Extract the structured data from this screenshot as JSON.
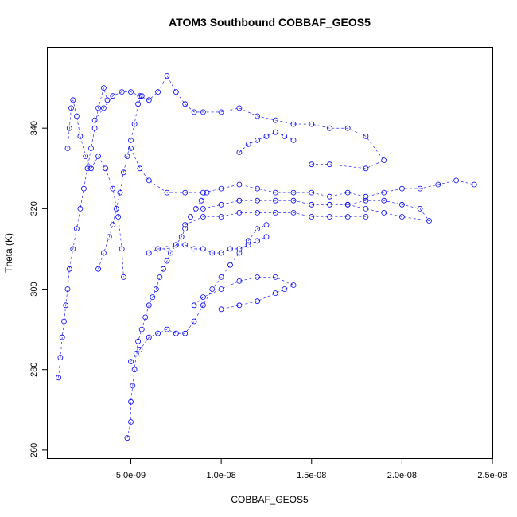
{
  "chart_data": {
    "type": "scatter",
    "title": "ATOM3 Southbound COBBAF_GEOS5",
    "xlabel": "COBBAF_GEOS5",
    "ylabel": "Theta (K)",
    "xlim": [
      4e-10,
      2.5e-08
    ],
    "ylim": [
      258,
      360
    ],
    "x_ticks": [
      5e-09,
      1e-08,
      1.5e-08,
      2e-08,
      2.5e-08
    ],
    "x_tick_labels": [
      "5.0e-09",
      "1.0e-08",
      "1.5e-08",
      "2.0e-08",
      "2.5e-08"
    ],
    "y_ticks": [
      260,
      280,
      300,
      320,
      340
    ],
    "y_tick_labels": [
      "260",
      "280",
      "300",
      "320",
      "340"
    ],
    "marker": "open-circle",
    "color": "#0000ff",
    "grid": false,
    "legend": "none",
    "series": [
      {
        "points": [
          [
            1e-09,
            278
          ],
          [
            1.1e-09,
            283
          ],
          [
            1.2e-09,
            288
          ],
          [
            1.3e-09,
            292
          ],
          [
            1.4e-09,
            296
          ],
          [
            1.5e-09,
            300
          ],
          [
            1.6e-09,
            305
          ],
          [
            1.8e-09,
            310
          ],
          [
            2e-09,
            315
          ],
          [
            2.2e-09,
            320
          ],
          [
            2.4e-09,
            325
          ],
          [
            2.6e-09,
            330
          ],
          [
            2.8e-09,
            335
          ],
          [
            3e-09,
            340
          ],
          [
            3.2e-09,
            345
          ],
          [
            3.5e-09,
            350
          ],
          [
            3.7e-09,
            347
          ]
        ]
      },
      {
        "points": [
          [
            1.5e-09,
            335
          ],
          [
            1.6e-09,
            340
          ],
          [
            1.7e-09,
            345
          ],
          [
            1.8e-09,
            347
          ],
          [
            2e-09,
            343
          ],
          [
            2.2e-09,
            338
          ],
          [
            2.5e-09,
            333
          ],
          [
            2.8e-09,
            330
          ],
          [
            3.2e-09,
            333
          ],
          [
            3.6e-09,
            330
          ],
          [
            4e-09,
            325
          ],
          [
            4.3e-09,
            318
          ],
          [
            4.5e-09,
            310
          ],
          [
            4.6e-09,
            303
          ]
        ]
      },
      {
        "points": [
          [
            3e-09,
            342
          ],
          [
            3.5e-09,
            345
          ],
          [
            4e-09,
            348
          ],
          [
            4.5e-09,
            349
          ],
          [
            5e-09,
            349
          ],
          [
            5.5e-09,
            348
          ],
          [
            6e-09,
            347
          ],
          [
            6.5e-09,
            349
          ],
          [
            7e-09,
            353
          ],
          [
            7.5e-09,
            349
          ],
          [
            8e-09,
            346
          ],
          [
            8.5e-09,
            344
          ],
          [
            9e-09,
            344
          ],
          [
            1e-08,
            344
          ],
          [
            1.1e-08,
            345
          ],
          [
            1.2e-08,
            343
          ],
          [
            1.3e-08,
            342
          ],
          [
            1.4e-08,
            341
          ],
          [
            1.5e-08,
            341
          ],
          [
            1.6e-08,
            340
          ],
          [
            1.7e-08,
            340
          ],
          [
            1.8e-08,
            338
          ],
          [
            1.9e-08,
            332
          ],
          [
            1.8e-08,
            330
          ],
          [
            1.6e-08,
            331
          ],
          [
            1.5e-08,
            331
          ]
        ]
      },
      {
        "points": [
          [
            5e-09,
            335
          ],
          [
            5.5e-09,
            330
          ],
          [
            6e-09,
            327
          ],
          [
            7e-09,
            324
          ],
          [
            8e-09,
            324
          ],
          [
            9e-09,
            324
          ],
          [
            1e-08,
            325
          ],
          [
            1.1e-08,
            326
          ],
          [
            1.2e-08,
            325
          ],
          [
            1.3e-08,
            324
          ],
          [
            1.4e-08,
            324
          ],
          [
            1.5e-08,
            324
          ],
          [
            1.6e-08,
            323
          ],
          [
            1.7e-08,
            324
          ],
          [
            1.8e-08,
            323
          ],
          [
            1.9e-08,
            324
          ],
          [
            2e-08,
            325
          ],
          [
            2.1e-08,
            325
          ],
          [
            2.2e-08,
            326
          ],
          [
            2.3e-08,
            327
          ],
          [
            2.4e-08,
            326
          ]
        ]
      },
      {
        "points": [
          [
            9e-09,
            320
          ],
          [
            1e-08,
            321
          ],
          [
            1.1e-08,
            322
          ],
          [
            1.2e-08,
            322
          ],
          [
            1.3e-08,
            322
          ],
          [
            1.4e-08,
            322
          ],
          [
            1.5e-08,
            321
          ],
          [
            1.6e-08,
            321
          ],
          [
            1.7e-08,
            321
          ],
          [
            1.8e-08,
            322
          ],
          [
            1.9e-08,
            322
          ],
          [
            2e-08,
            321
          ],
          [
            2.1e-08,
            320
          ],
          [
            2.15e-08,
            317
          ],
          [
            2e-08,
            318
          ],
          [
            1.9e-08,
            319
          ],
          [
            1.8e-08,
            320
          ],
          [
            1.7e-08,
            321
          ]
        ]
      },
      {
        "points": [
          [
            8e-09,
            316
          ],
          [
            9e-09,
            318
          ],
          [
            1e-08,
            318
          ],
          [
            1.1e-08,
            319
          ],
          [
            1.2e-08,
            319
          ],
          [
            1.3e-08,
            319
          ],
          [
            1.4e-08,
            319
          ],
          [
            1.5e-08,
            318
          ],
          [
            1.6e-08,
            318
          ],
          [
            1.7e-08,
            318
          ],
          [
            1.8e-08,
            318
          ]
        ]
      },
      {
        "points": [
          [
            4.8e-09,
            263
          ],
          [
            5e-09,
            267
          ],
          [
            5e-09,
            272
          ],
          [
            5.1e-09,
            276
          ],
          [
            5.2e-09,
            280
          ],
          [
            5.3e-09,
            284
          ],
          [
            5.4e-09,
            287
          ],
          [
            5.6e-09,
            290
          ],
          [
            5.8e-09,
            293
          ],
          [
            6e-09,
            296
          ],
          [
            6.2e-09,
            298
          ],
          [
            6.4e-09,
            300
          ],
          [
            6.6e-09,
            303
          ],
          [
            6.8e-09,
            305
          ],
          [
            7e-09,
            307
          ],
          [
            7.2e-09,
            309
          ],
          [
            7.5e-09,
            311
          ],
          [
            7.8e-09,
            313
          ],
          [
            8e-09,
            315
          ],
          [
            8.3e-09,
            318
          ],
          [
            8.6e-09,
            320
          ],
          [
            8.9e-09,
            322
          ],
          [
            9.2e-09,
            324
          ]
        ]
      },
      {
        "points": [
          [
            5e-09,
            282
          ],
          [
            5.5e-09,
            285
          ],
          [
            6e-09,
            288
          ],
          [
            6.5e-09,
            289
          ],
          [
            7e-09,
            290
          ],
          [
            7.5e-09,
            289
          ],
          [
            8e-09,
            289
          ],
          [
            8.5e-09,
            292
          ],
          [
            9e-09,
            296
          ],
          [
            9.5e-09,
            300
          ],
          [
            1e-08,
            303
          ],
          [
            1.05e-08,
            306
          ],
          [
            1.1e-08,
            309
          ],
          [
            1.15e-08,
            312
          ],
          [
            1.2e-08,
            315
          ],
          [
            1.25e-08,
            316
          ]
        ]
      },
      {
        "points": [
          [
            8.5e-09,
            296
          ],
          [
            9e-09,
            298
          ],
          [
            1e-08,
            300
          ],
          [
            1.1e-08,
            302
          ],
          [
            1.2e-08,
            303
          ],
          [
            1.3e-08,
            303
          ],
          [
            1.4e-08,
            301
          ],
          [
            1.35e-08,
            300
          ],
          [
            1.3e-08,
            299
          ],
          [
            1.2e-08,
            297
          ],
          [
            1.1e-08,
            296
          ],
          [
            1e-08,
            295
          ]
        ]
      },
      {
        "points": [
          [
            3.2e-09,
            305
          ],
          [
            3.5e-09,
            309
          ],
          [
            3.8e-09,
            313
          ],
          [
            4e-09,
            316
          ],
          [
            4.2e-09,
            320
          ],
          [
            4.4e-09,
            324
          ],
          [
            4.6e-09,
            329
          ],
          [
            4.8e-09,
            333
          ],
          [
            5e-09,
            337
          ],
          [
            5.2e-09,
            341
          ],
          [
            5.4e-09,
            346
          ],
          [
            5.6e-09,
            348
          ]
        ]
      },
      {
        "points": [
          [
            1.1e-08,
            334
          ],
          [
            1.15e-08,
            336
          ],
          [
            1.2e-08,
            337
          ],
          [
            1.25e-08,
            338
          ],
          [
            1.3e-08,
            339
          ],
          [
            1.35e-08,
            338
          ],
          [
            1.4e-08,
            337
          ]
        ]
      },
      {
        "points": [
          [
            6e-09,
            309
          ],
          [
            6.5e-09,
            310
          ],
          [
            7e-09,
            310
          ],
          [
            7.5e-09,
            311
          ],
          [
            8e-09,
            311
          ],
          [
            8.5e-09,
            310
          ],
          [
            9e-09,
            310
          ],
          [
            9.5e-09,
            309
          ],
          [
            1e-08,
            309
          ],
          [
            1.05e-08,
            310
          ],
          [
            1.1e-08,
            310
          ],
          [
            1.15e-08,
            311
          ],
          [
            1.2e-08,
            312
          ],
          [
            1.25e-08,
            313
          ]
        ]
      }
    ]
  }
}
